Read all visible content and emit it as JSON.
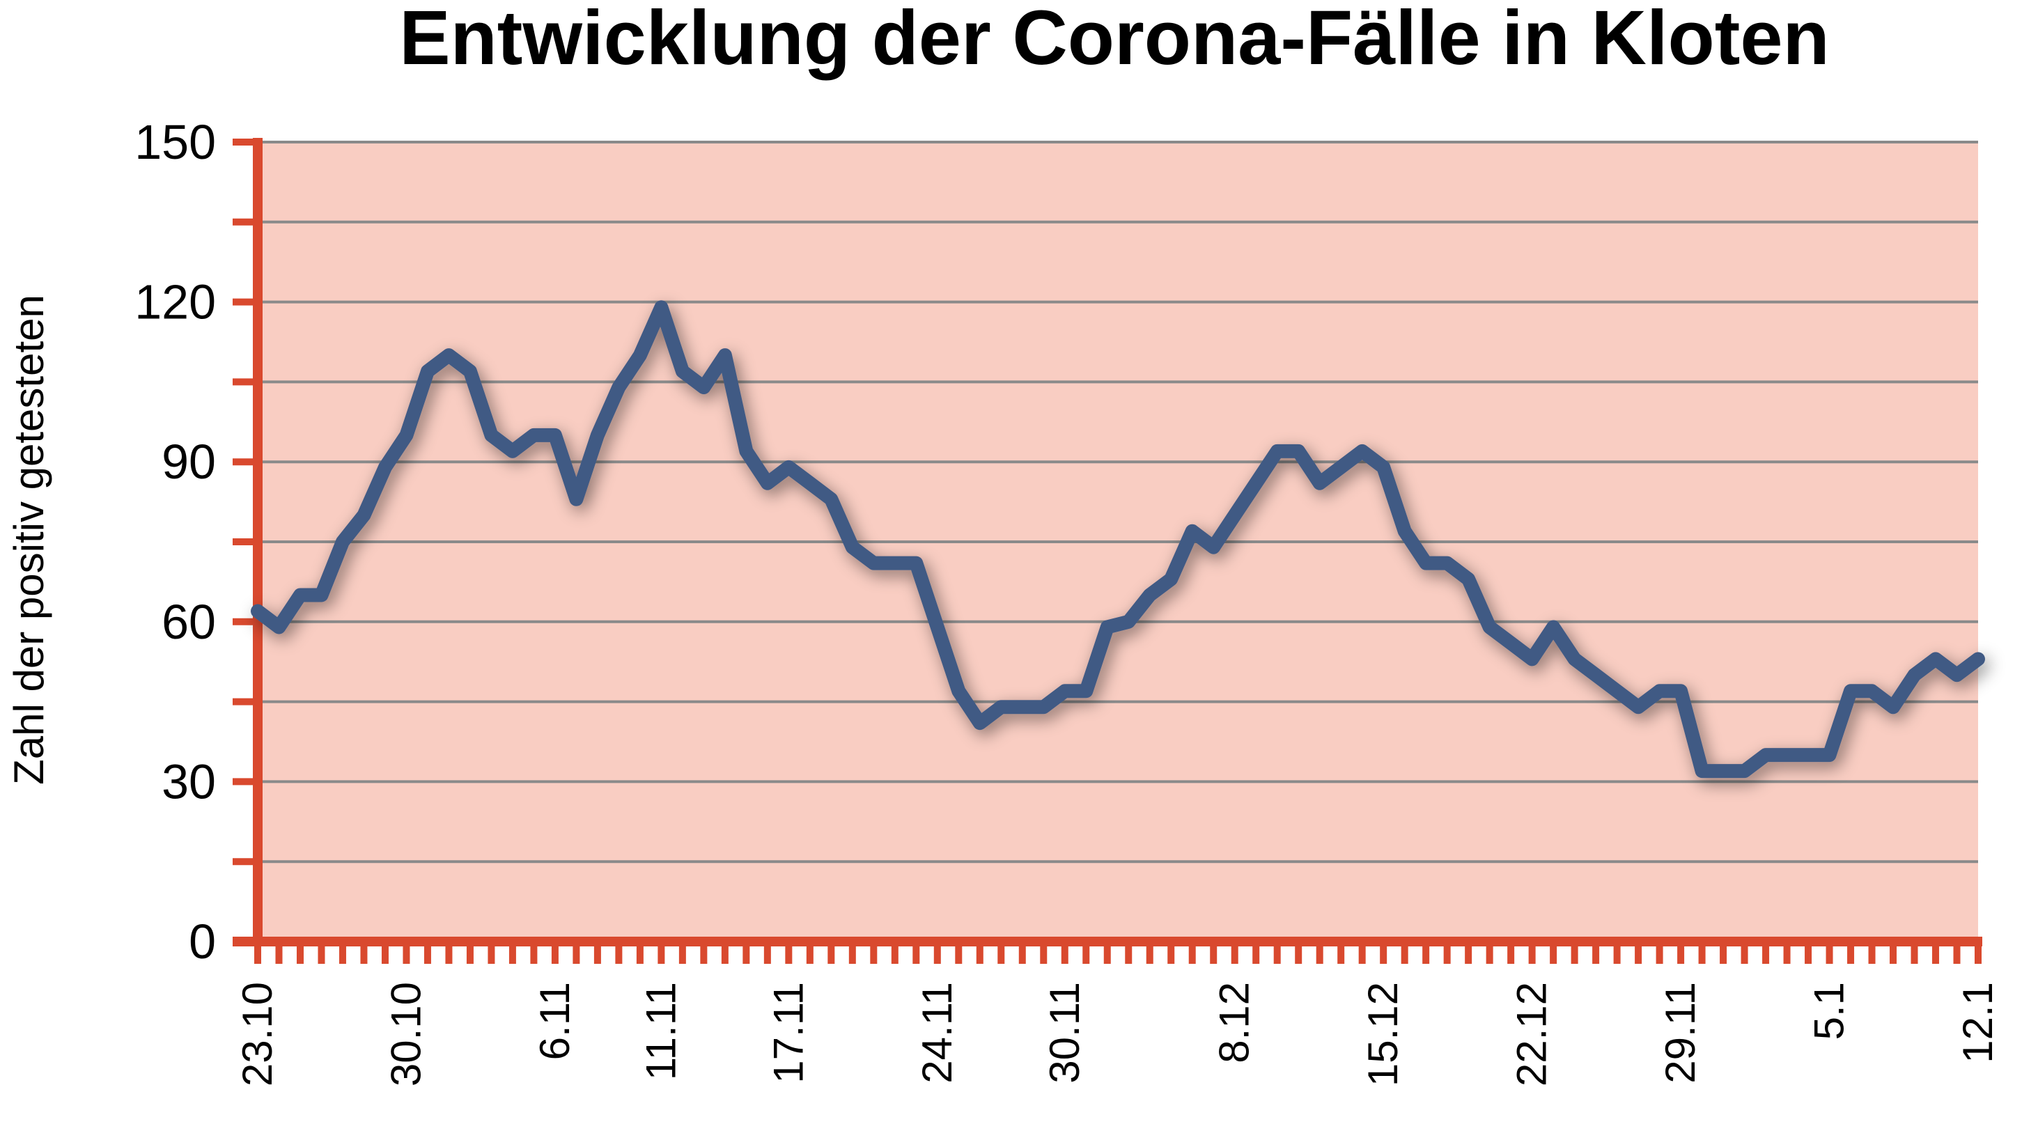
{
  "chart_data": {
    "type": "line",
    "title": "Entwicklung der Corona-Fälle in Kloten",
    "ylabel": "Zahl der positiv getesteten",
    "xlabel": "",
    "ylim": [
      0,
      150
    ],
    "yticks": [
      0,
      30,
      60,
      90,
      120,
      150
    ],
    "grid": true,
    "legend": "none",
    "xtick_labels": [
      {
        "label": "23.10",
        "index": 0
      },
      {
        "label": "30.10",
        "index": 7
      },
      {
        "label": "6.11",
        "index": 14
      },
      {
        "label": "11.11",
        "index": 19
      },
      {
        "label": "17.11",
        "index": 25
      },
      {
        "label": "24.11",
        "index": 32
      },
      {
        "label": "30.11",
        "index": 38
      },
      {
        "label": "8.12",
        "index": 46
      },
      {
        "label": "15.12",
        "index": 53
      },
      {
        "label": "22.12",
        "index": 60
      },
      {
        "label": "29.11",
        "index": 67
      },
      {
        "label": "5.1",
        "index": 74
      },
      {
        "label": "12.1",
        "index": 81
      }
    ],
    "series": [
      {
        "values": [
          62,
          59,
          65,
          65,
          75,
          80,
          89,
          95,
          107,
          110,
          107,
          95,
          92,
          95,
          95,
          83,
          95,
          104,
          110,
          119,
          107,
          104,
          110,
          92,
          86,
          89,
          86,
          83,
          74,
          71,
          71,
          71,
          59,
          47,
          41,
          44,
          44,
          44,
          47,
          47,
          59,
          60,
          65,
          68,
          77,
          74,
          80,
          86,
          92,
          92,
          86,
          89,
          92,
          89,
          77,
          71,
          71,
          68,
          59,
          56,
          53,
          59,
          53,
          50,
          47,
          44,
          47,
          47,
          32,
          32,
          32,
          35,
          35,
          35,
          35,
          47,
          47,
          44,
          50,
          53,
          50,
          53
        ]
      }
    ],
    "colors": {
      "plot_background": "#f9cdc2",
      "axis": "#d9492e",
      "gridline": "#8a8a8a",
      "line": "#415a84"
    }
  }
}
